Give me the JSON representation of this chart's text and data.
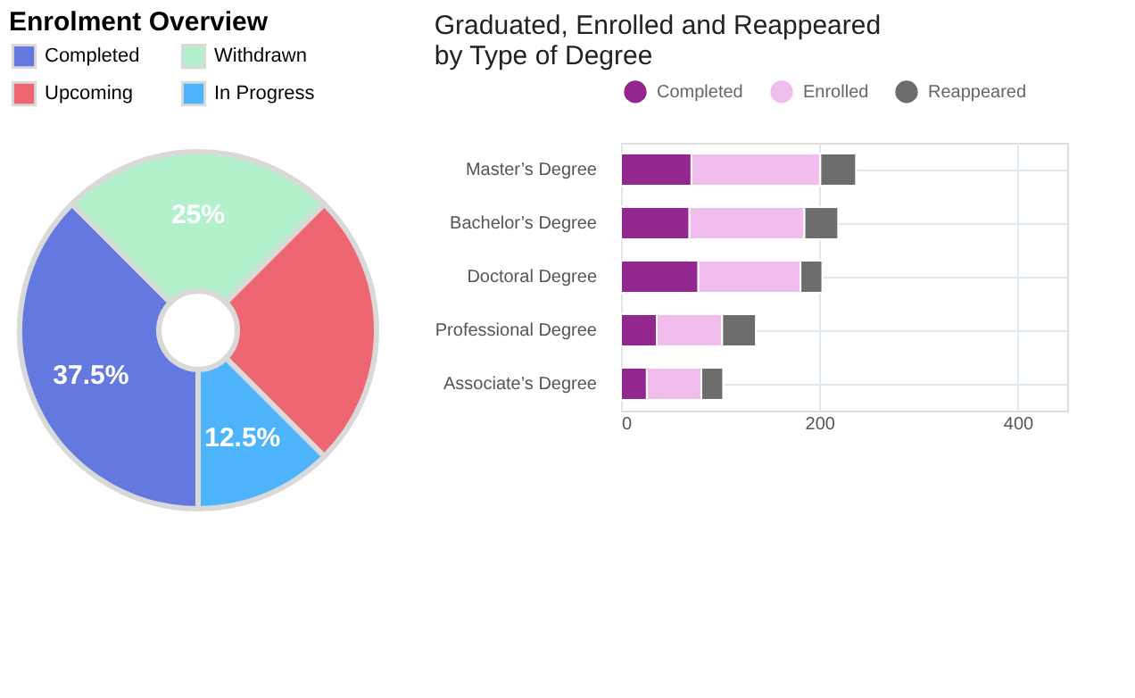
{
  "chart_data": [
    {
      "type": "donut",
      "title": "Enrolment Overview",
      "categories": [
        "Completed",
        "Withdrawn",
        "Upcoming",
        "In Progress"
      ],
      "values": [
        37.5,
        25,
        25,
        12.5
      ],
      "colors": [
        "#6379e0",
        "#b3f0cc",
        "#ef6673",
        "#4db3fb"
      ],
      "value_labels": [
        "37.5%",
        "25%",
        null,
        "12.5%"
      ],
      "legend": "top"
    },
    {
      "type": "bar",
      "title": "Graduated, Enrolled and Reappeared by Type of Degree",
      "orientation": "horizontal",
      "stacked": true,
      "categories": [
        "Master’s Degree",
        "Bachelor’s Degree",
        "Doctoral Degree",
        "Professional Degree",
        "Associate’s Degree"
      ],
      "series": [
        {
          "name": "Completed",
          "color": "#93278f",
          "values": [
            71,
            69,
            78,
            36,
            26
          ]
        },
        {
          "name": "Enrolled",
          "color": "#f0bdec",
          "values": [
            130,
            116,
            103,
            66,
            55
          ]
        },
        {
          "name": "Reappeared",
          "color": "#6d6d6d",
          "values": [
            36,
            34,
            22,
            34,
            22
          ]
        }
      ],
      "xlim": [
        0,
        450
      ],
      "xticks": [
        0,
        200,
        400
      ],
      "grid": true,
      "legend": "top"
    }
  ]
}
